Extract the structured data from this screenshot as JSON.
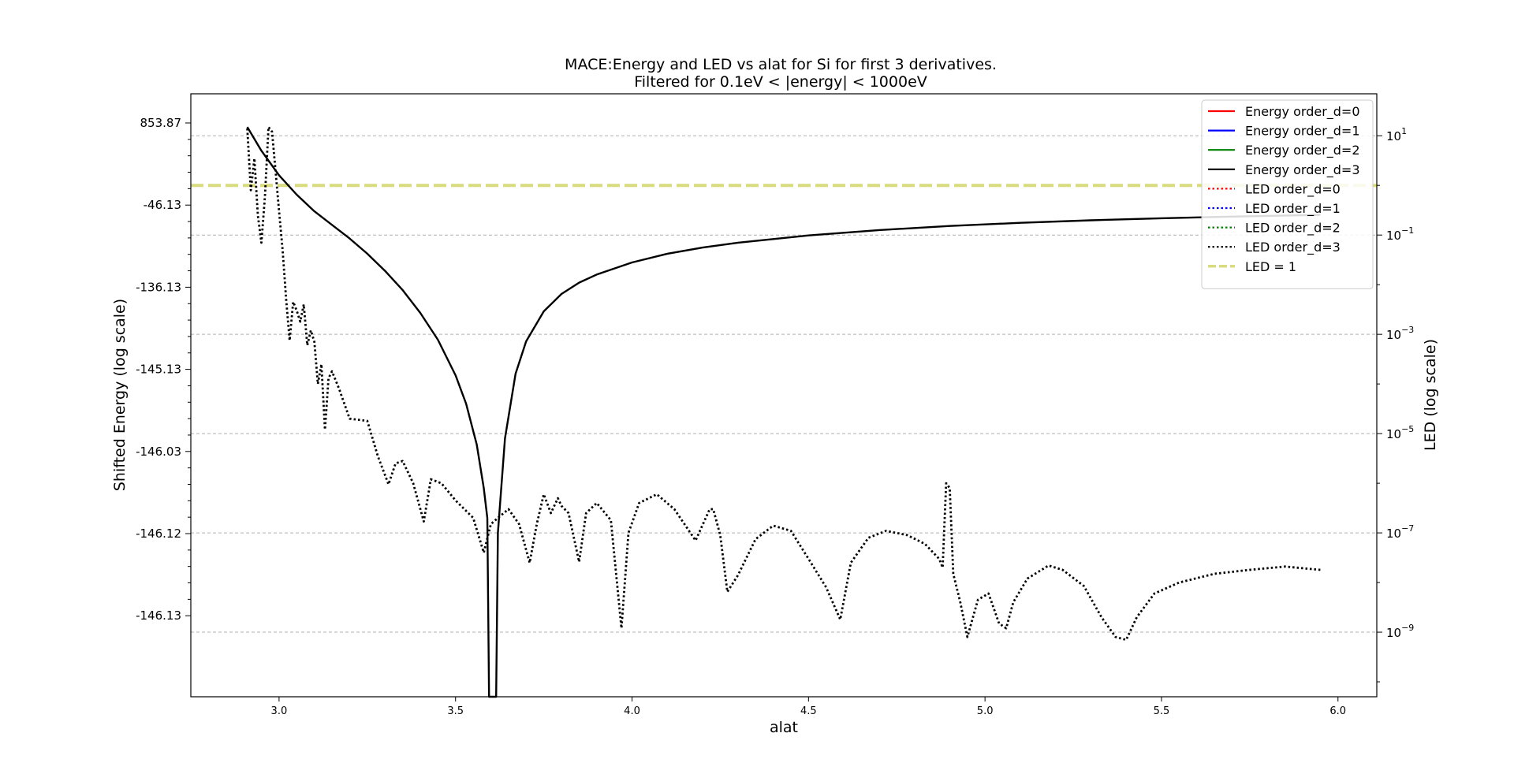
{
  "chart_data": {
    "type": "line",
    "title": "MACE:Energy and LED vs alat for Si for first 3 derivatives.",
    "subtitle": "Filtered for 0.1eV < |energy| < 1000eV",
    "xlabel": "alat",
    "ylabel": "Shifted Energy (log scale)",
    "y2label": "LED (log scale)",
    "xlim": [
      2.75,
      6.11
    ],
    "x_ticks": [
      "3.0",
      "3.5",
      "4.0",
      "4.5",
      "5.0",
      "5.5",
      "6.0"
    ],
    "x_tick_values": [
      3.0,
      3.5,
      4.0,
      4.5,
      5.0,
      5.5,
      6.0
    ],
    "y_tick_labels": [
      "853.87",
      "-46.13",
      "-136.13",
      "-145.13",
      "-146.03",
      "-146.12",
      "-146.13"
    ],
    "y2_scale": "log",
    "y2lim": [
      5e-11,
      70
    ],
    "y2_ticks": [
      {
        "base": "10",
        "exp": "1",
        "value": 10
      },
      {
        "base": "10",
        "exp": "−1",
        "value": 0.1
      },
      {
        "base": "10",
        "exp": "−3",
        "value": 0.001
      },
      {
        "base": "10",
        "exp": "−5",
        "value": 1e-05
      },
      {
        "base": "10",
        "exp": "−7",
        "value": 1e-07
      },
      {
        "base": "10",
        "exp": "−9",
        "value": 1e-09
      }
    ],
    "grid": "y2-major dashed",
    "legend_position": "top-right",
    "legend": [
      {
        "label": "Energy order_d=0",
        "color": "#ff0000",
        "style": "solid"
      },
      {
        "label": "Energy order_d=1",
        "color": "#0000ff",
        "style": "solid"
      },
      {
        "label": "Energy order_d=2",
        "color": "#008000",
        "style": "solid"
      },
      {
        "label": "Energy order_d=3",
        "color": "#000000",
        "style": "solid"
      },
      {
        "label": "LED order_d=0",
        "color": "#ff0000",
        "style": "dotted"
      },
      {
        "label": "LED order_d=1",
        "color": "#0000ff",
        "style": "dotted"
      },
      {
        "label": "LED order_d=2",
        "color": "#008000",
        "style": "dotted"
      },
      {
        "label": "LED order_d=3",
        "color": "#000000",
        "style": "dotted"
      },
      {
        "label": "LED = 1",
        "color": "#d9dc7e",
        "style": "dashed"
      }
    ],
    "reference_line": {
      "label": "LED = 1",
      "y2": 1
    },
    "series": [
      {
        "name": "Energy order_d=3",
        "axis": "y2",
        "style": "solid",
        "color": "#000000",
        "x": [
          2.91,
          2.95,
          3.0,
          3.05,
          3.1,
          3.15,
          3.2,
          3.25,
          3.3,
          3.35,
          3.4,
          3.45,
          3.5,
          3.53,
          3.56,
          3.58,
          3.59,
          3.595,
          3.6,
          3.605,
          3.61,
          3.615,
          3.62,
          3.64,
          3.67,
          3.7,
          3.75,
          3.8,
          3.85,
          3.9,
          4.0,
          4.1,
          4.2,
          4.3,
          4.5,
          4.7,
          4.9,
          5.1,
          5.3,
          5.5,
          5.7,
          5.95
        ],
        "y": [
          15,
          5,
          1.6,
          0.65,
          0.3,
          0.16,
          0.085,
          0.042,
          0.019,
          0.0078,
          0.0027,
          0.00078,
          0.00015,
          4e-05,
          6e-06,
          8e-07,
          2e-07,
          5e-11,
          5e-11,
          5e-11,
          5e-11,
          5e-11,
          1e-07,
          8e-06,
          0.00016,
          0.00072,
          0.0029,
          0.0065,
          0.011,
          0.016,
          0.028,
          0.042,
          0.056,
          0.07,
          0.098,
          0.126,
          0.152,
          0.176,
          0.198,
          0.218,
          0.235,
          0.255
        ]
      },
      {
        "name": "LED order_d=3",
        "axis": "y2",
        "style": "dotted",
        "color": "#000000",
        "x": [
          2.91,
          2.92,
          2.93,
          2.94,
          2.95,
          2.96,
          2.97,
          2.98,
          2.99,
          3.0,
          3.01,
          3.02,
          3.03,
          3.04,
          3.05,
          3.06,
          3.07,
          3.08,
          3.09,
          3.1,
          3.11,
          3.12,
          3.13,
          3.14,
          3.15,
          3.17,
          3.2,
          3.25,
          3.28,
          3.31,
          3.33,
          3.35,
          3.38,
          3.41,
          3.43,
          3.46,
          3.5,
          3.55,
          3.58,
          3.6,
          3.62,
          3.65,
          3.68,
          3.71,
          3.73,
          3.75,
          3.77,
          3.79,
          3.8,
          3.82,
          3.85,
          3.87,
          3.9,
          3.94,
          3.97,
          3.99,
          4.02,
          4.07,
          4.12,
          4.18,
          4.22,
          4.23,
          4.25,
          4.27,
          4.3,
          4.35,
          4.4,
          4.45,
          4.5,
          4.55,
          4.59,
          4.62,
          4.67,
          4.72,
          4.78,
          4.83,
          4.87,
          4.88,
          4.89,
          4.9,
          4.91,
          4.93,
          4.95,
          4.98,
          5.01,
          5.04,
          5.06,
          5.08,
          5.12,
          5.18,
          5.22,
          5.28,
          5.33,
          5.37,
          5.4,
          5.43,
          5.48,
          5.55,
          5.65,
          5.75,
          5.85,
          5.95
        ],
        "y": [
          14,
          0.8,
          3.5,
          0.25,
          0.07,
          0.6,
          15,
          12,
          2,
          0.3,
          0.05,
          0.005,
          0.00075,
          0.0045,
          0.003,
          0.0018,
          0.004,
          0.0006,
          0.0012,
          0.0007,
          0.0001,
          0.00025,
          1.2e-05,
          0.00013,
          0.00018,
          8e-05,
          2e-05,
          1.8e-05,
          3.5e-06,
          9.5e-07,
          2.5e-06,
          2.8e-06,
          1e-06,
          1.7e-07,
          1.2e-06,
          1e-06,
          4.5e-07,
          2e-07,
          4e-08,
          1.5e-07,
          2e-07,
          3e-07,
          1.5e-07,
          2.5e-08,
          1.5e-07,
          6e-07,
          2.5e-07,
          5e-07,
          3.5e-07,
          2.5e-07,
          2.6e-08,
          2.5e-07,
          4e-07,
          1.8e-07,
          1.2e-09,
          1e-07,
          4e-07,
          6e-07,
          3e-07,
          7e-08,
          3e-07,
          3e-07,
          9e-08,
          6.5e-09,
          1.4e-08,
          7.5e-08,
          1.4e-07,
          1.1e-07,
          3e-08,
          8e-09,
          1.8e-09,
          2.5e-08,
          8e-08,
          1.1e-07,
          9e-08,
          6e-08,
          3e-08,
          2e-08,
          1e-06,
          8e-07,
          1.5e-08,
          4e-09,
          8e-10,
          4.5e-09,
          6e-09,
          1.5e-09,
          1.2e-09,
          4e-09,
          1.2e-08,
          2.2e-08,
          1.8e-08,
          8.5e-09,
          2e-09,
          8e-10,
          7e-10,
          2e-09,
          6e-09,
          1e-08,
          1.5e-08,
          1.8e-08,
          2.1e-08,
          1.8e-08
        ]
      }
    ]
  }
}
